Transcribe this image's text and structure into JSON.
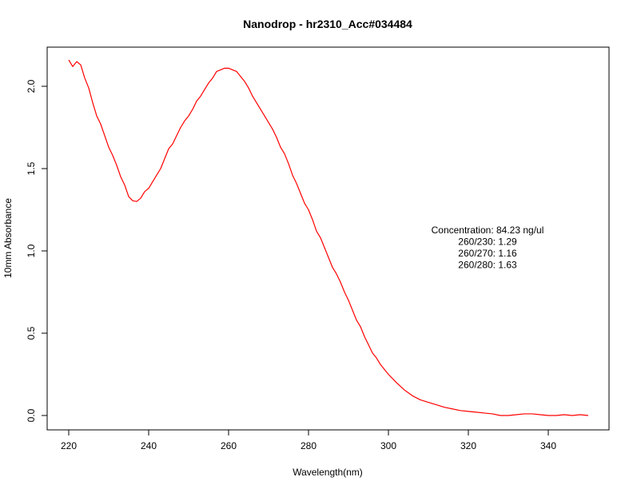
{
  "chart_data": {
    "type": "line",
    "title": "Nanodrop - hr2310_Acc#034484",
    "xlabel": "Wavelength(nm)",
    "ylabel": "10mm Absorbance",
    "xlim": [
      220,
      350
    ],
    "ylim": [
      0.0,
      2.2
    ],
    "x_ticks": [
      220,
      240,
      260,
      280,
      300,
      320,
      340
    ],
    "x_tick_labels": [
      "220",
      "240",
      "260",
      "280",
      "300",
      "320",
      "340"
    ],
    "y_ticks": [
      0.0,
      0.5,
      1.0,
      1.5,
      2.0
    ],
    "y_tick_labels": [
      "0.0",
      "0.5",
      "1.0",
      "1.5",
      "2.0"
    ],
    "grid": false,
    "legend": "none",
    "line_color": "#ff0000",
    "annotations": [
      "Concentration: 84.23 ng/ul",
      "260/230: 1.29",
      "260/270: 1.16",
      "260/280: 1.63"
    ],
    "series": [
      {
        "x": [
          220,
          221,
          222,
          223,
          224,
          225,
          226,
          227,
          228,
          229,
          230,
          231,
          232,
          233,
          234,
          235,
          236,
          237,
          238,
          239,
          240,
          241,
          242,
          243,
          244,
          245,
          246,
          247,
          248,
          249,
          250,
          251,
          252,
          253,
          254,
          255,
          256,
          257,
          258,
          259,
          260,
          261,
          262,
          263,
          264,
          265,
          266,
          267,
          268,
          269,
          270,
          271,
          272,
          273,
          274,
          275,
          276,
          277,
          278,
          279,
          280,
          281,
          282,
          283,
          284,
          285,
          286,
          287,
          288,
          289,
          290,
          291,
          292,
          293,
          294,
          295,
          296,
          297,
          298,
          299,
          300,
          302,
          304,
          306,
          308,
          310,
          312,
          314,
          316,
          318,
          320,
          322,
          324,
          326,
          328,
          330,
          332,
          334,
          336,
          338,
          340,
          342,
          344,
          346,
          348,
          350
        ],
        "values": [
          2.16,
          2.12,
          2.15,
          2.13,
          2.05,
          1.99,
          1.9,
          1.82,
          1.77,
          1.7,
          1.63,
          1.58,
          1.52,
          1.45,
          1.4,
          1.33,
          1.305,
          1.3,
          1.32,
          1.36,
          1.38,
          1.42,
          1.46,
          1.5,
          1.56,
          1.62,
          1.65,
          1.7,
          1.75,
          1.79,
          1.82,
          1.86,
          1.91,
          1.94,
          1.98,
          2.02,
          2.05,
          2.09,
          2.1,
          2.11,
          2.11,
          2.1,
          2.09,
          2.06,
          2.03,
          1.99,
          1.94,
          1.9,
          1.86,
          1.82,
          1.78,
          1.74,
          1.69,
          1.63,
          1.59,
          1.53,
          1.46,
          1.41,
          1.35,
          1.29,
          1.25,
          1.19,
          1.12,
          1.08,
          1.02,
          0.96,
          0.9,
          0.86,
          0.81,
          0.75,
          0.7,
          0.64,
          0.58,
          0.54,
          0.48,
          0.43,
          0.38,
          0.35,
          0.31,
          0.28,
          0.25,
          0.2,
          0.155,
          0.12,
          0.095,
          0.08,
          0.065,
          0.05,
          0.04,
          0.03,
          0.025,
          0.02,
          0.015,
          0.01,
          0.0,
          0.0,
          0.005,
          0.01,
          0.01,
          0.005,
          0.0,
          0.0,
          0.005,
          0.0,
          0.005,
          0.0
        ]
      }
    ]
  }
}
